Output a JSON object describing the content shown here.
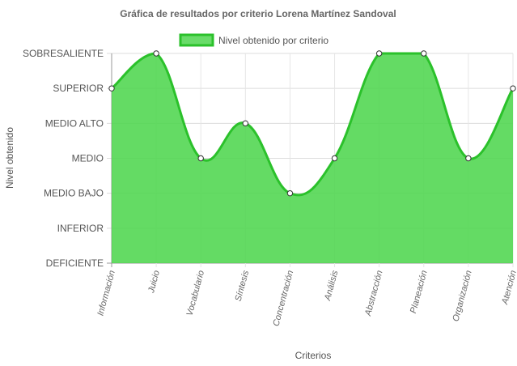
{
  "chart_data": {
    "type": "area",
    "title": "Gráfica de resultados por criterio Lorena Martínez Sandoval",
    "xlabel": "Criterios",
    "ylabel": "Nivel obtenido",
    "y_levels": [
      "DEFICIENTE",
      "INFERIOR",
      "MEDIO BAJO",
      "MEDIO",
      "MEDIO ALTO",
      "SUPERIOR",
      "SOBRESALIENTE"
    ],
    "categories": [
      "Información",
      "Juicio",
      "Vocabulario",
      "Síntesis",
      "Concentración",
      "Análisis",
      "Abstracción",
      "Planeación",
      "Organización",
      "Atención"
    ],
    "series": [
      {
        "name": "Nivel obtenido por criterio",
        "values": [
          "SUPERIOR",
          "SOBRESALIENTE",
          "MEDIO",
          "MEDIO ALTO",
          "MEDIO BAJO",
          "MEDIO",
          "SOBRESALIENTE",
          "SOBRESALIENTE",
          "MEDIO",
          "SUPERIOR"
        ],
        "color": "#2bc12b",
        "fill": "#4fd64f"
      }
    ],
    "legend": "top",
    "grid": true
  }
}
